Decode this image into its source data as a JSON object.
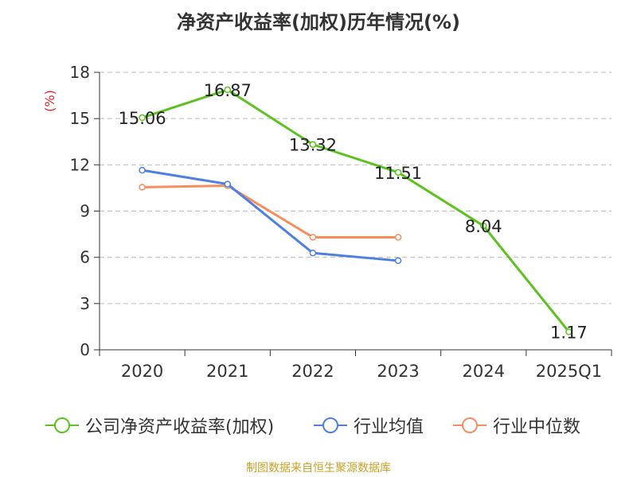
{
  "page": {
    "title": "净资产收益率(加权)历年情况(%)",
    "source": "制图数据来自恒生聚源数据库"
  },
  "chart_data": {
    "type": "line",
    "title": "净资产收益率(加权)历年情况(%)",
    "ylabel": "(%)",
    "xlabel": "",
    "categories": [
      "2020",
      "2021",
      "2022",
      "2023",
      "2024",
      "2025Q1"
    ],
    "ylim": [
      0,
      18
    ],
    "yticks": [
      0,
      3,
      6,
      9,
      12,
      15,
      18
    ],
    "grid": true,
    "legend_position": "bottom",
    "series": [
      {
        "name": "公司净资产收益率(加权)",
        "color": "#5cc21f",
        "values": [
          15.06,
          16.87,
          13.32,
          11.51,
          8.04,
          1.17
        ],
        "labels": [
          "15.06",
          "16.87",
          "13.32",
          "11.51",
          "8.04",
          "1.17"
        ]
      },
      {
        "name": "行业均值",
        "color": "#4f7fe0",
        "values": [
          11.65,
          10.75,
          6.28,
          5.78,
          null,
          null
        ]
      },
      {
        "name": "行业中位数",
        "color": "#f88d5e",
        "values": [
          10.55,
          10.65,
          7.3,
          7.3,
          null,
          null
        ]
      }
    ]
  }
}
